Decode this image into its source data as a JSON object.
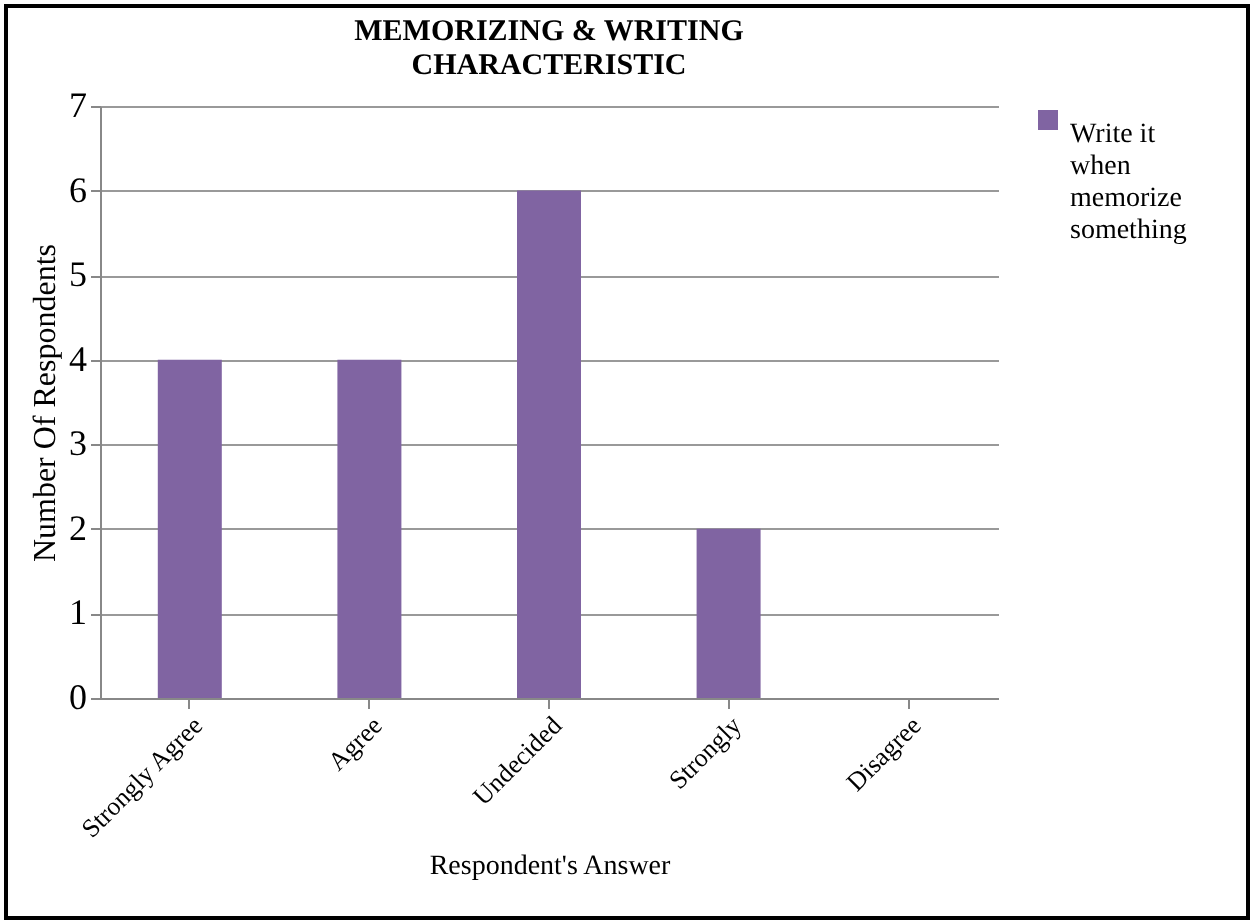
{
  "chart_data": {
    "type": "bar",
    "title": "MEMORIZING & WRITING CHARACTERISTIC",
    "xlabel": "Respondent's Answer",
    "ylabel": "Number Of Respondents",
    "categories": [
      "Strongly Agree",
      "Agree",
      "Undecided",
      "Strongly",
      "Disagree"
    ],
    "series": [
      {
        "name": "Write it when memorize something",
        "color": "#8064a2",
        "values": [
          4,
          4,
          6,
          2,
          0
        ]
      }
    ],
    "ylim": [
      0,
      7
    ],
    "yticks": [
      0,
      1,
      2,
      3,
      4,
      5,
      6,
      7
    ],
    "grid": "y",
    "legend": "right"
  }
}
